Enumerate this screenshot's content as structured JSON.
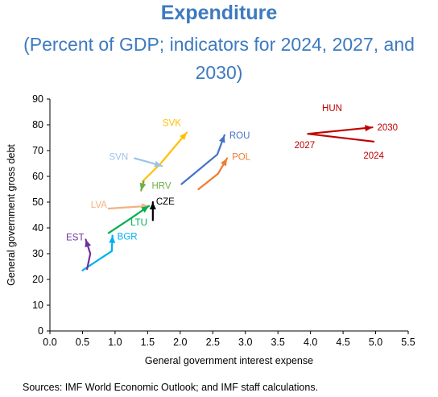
{
  "chart_data": {
    "type": "line",
    "title": "Expenditure",
    "subtitle": "(Percent of GDP; indicators for 2024, 2027, and 2030)",
    "xlabel": "General government interest expense",
    "ylabel": "General government gross debt",
    "xlim": [
      0,
      5.5
    ],
    "ylim": [
      0,
      90
    ],
    "xticks": [
      "0.0",
      "0.5",
      "1.0",
      "1.5",
      "2.0",
      "2.5",
      "3.0",
      "3.5",
      "4.0",
      "4.5",
      "5.0",
      "5.5"
    ],
    "yticks": [
      "0",
      "10",
      "20",
      "30",
      "40",
      "50",
      "60",
      "70",
      "80",
      "90"
    ],
    "grid": false,
    "series": [
      {
        "name": "HUN",
        "color": "#c00000",
        "points": [
          [
            4.97,
            73.5
          ],
          [
            3.96,
            76.5
          ],
          [
            4.95,
            79.0
          ]
        ]
      },
      {
        "name": "ROU",
        "color": "#4472c4",
        "points": [
          [
            2.02,
            57.0
          ],
          [
            2.57,
            68.5
          ],
          [
            2.68,
            76.0
          ]
        ]
      },
      {
        "name": "POL",
        "color": "#ed7d31",
        "points": [
          [
            2.28,
            55.0
          ],
          [
            2.58,
            61.0
          ],
          [
            2.72,
            67.0
          ]
        ]
      },
      {
        "name": "SVK",
        "color": "#ffc000",
        "points": [
          [
            1.42,
            58.0
          ],
          [
            1.7,
            65.0
          ],
          [
            2.1,
            77.0
          ]
        ]
      },
      {
        "name": "SVN",
        "color": "#9dc3e6",
        "points": [
          [
            1.3,
            67.0
          ],
          [
            1.52,
            65.5
          ],
          [
            1.72,
            64.0
          ]
        ]
      },
      {
        "name": "HRV",
        "color": "#70ad47",
        "points": [
          [
            1.44,
            58.0
          ],
          [
            1.42,
            56.5
          ],
          [
            1.4,
            54.5
          ]
        ]
      },
      {
        "name": "LVA",
        "color": "#f4b183",
        "points": [
          [
            0.9,
            47.5
          ],
          [
            1.2,
            48.0
          ],
          [
            1.52,
            48.5
          ]
        ]
      },
      {
        "name": "CZE",
        "color": "#000000",
        "points": [
          [
            1.58,
            43.0
          ],
          [
            1.58,
            46.5
          ],
          [
            1.58,
            50.0
          ]
        ]
      },
      {
        "name": "LTU",
        "color": "#00b050",
        "points": [
          [
            0.9,
            38.0
          ],
          [
            1.2,
            43.0
          ],
          [
            1.52,
            48.5
          ]
        ]
      },
      {
        "name": "BGR",
        "color": "#00b0f0",
        "points": [
          [
            0.5,
            23.5
          ],
          [
            0.95,
            31.0
          ],
          [
            0.96,
            37.0
          ]
        ]
      },
      {
        "name": "EST",
        "color": "#7030a0",
        "points": [
          [
            0.57,
            24.0
          ],
          [
            0.62,
            30.0
          ],
          [
            0.55,
            35.5
          ]
        ]
      }
    ],
    "annotations": [
      {
        "text": "HUN",
        "series": "HUN",
        "color": "#c00000"
      },
      {
        "text": "2030",
        "color": "#c00000"
      },
      {
        "text": "2027",
        "color": "#c00000"
      },
      {
        "text": "2024",
        "color": "#c00000"
      },
      {
        "text": "ROU",
        "series": "ROU",
        "color": "#4472c4"
      },
      {
        "text": "POL",
        "series": "POL",
        "color": "#ed7d31"
      },
      {
        "text": "SVK",
        "series": "SVK",
        "color": "#ffc000"
      },
      {
        "text": "SVN",
        "series": "SVN",
        "color": "#9dc3e6"
      },
      {
        "text": "HRV",
        "series": "HRV",
        "color": "#70ad47"
      },
      {
        "text": "LVA",
        "series": "LVA",
        "color": "#f4b183"
      },
      {
        "text": "CZE",
        "series": "CZE",
        "color": "#000000"
      },
      {
        "text": "LTU",
        "series": "LTU",
        "color": "#00b050"
      },
      {
        "text": "BGR",
        "series": "BGR",
        "color": "#00b0f0"
      },
      {
        "text": "EST",
        "series": "EST",
        "color": "#7030a0"
      }
    ]
  },
  "source": "Sources: IMF World Economic Outlook; and IMF staff calculations."
}
